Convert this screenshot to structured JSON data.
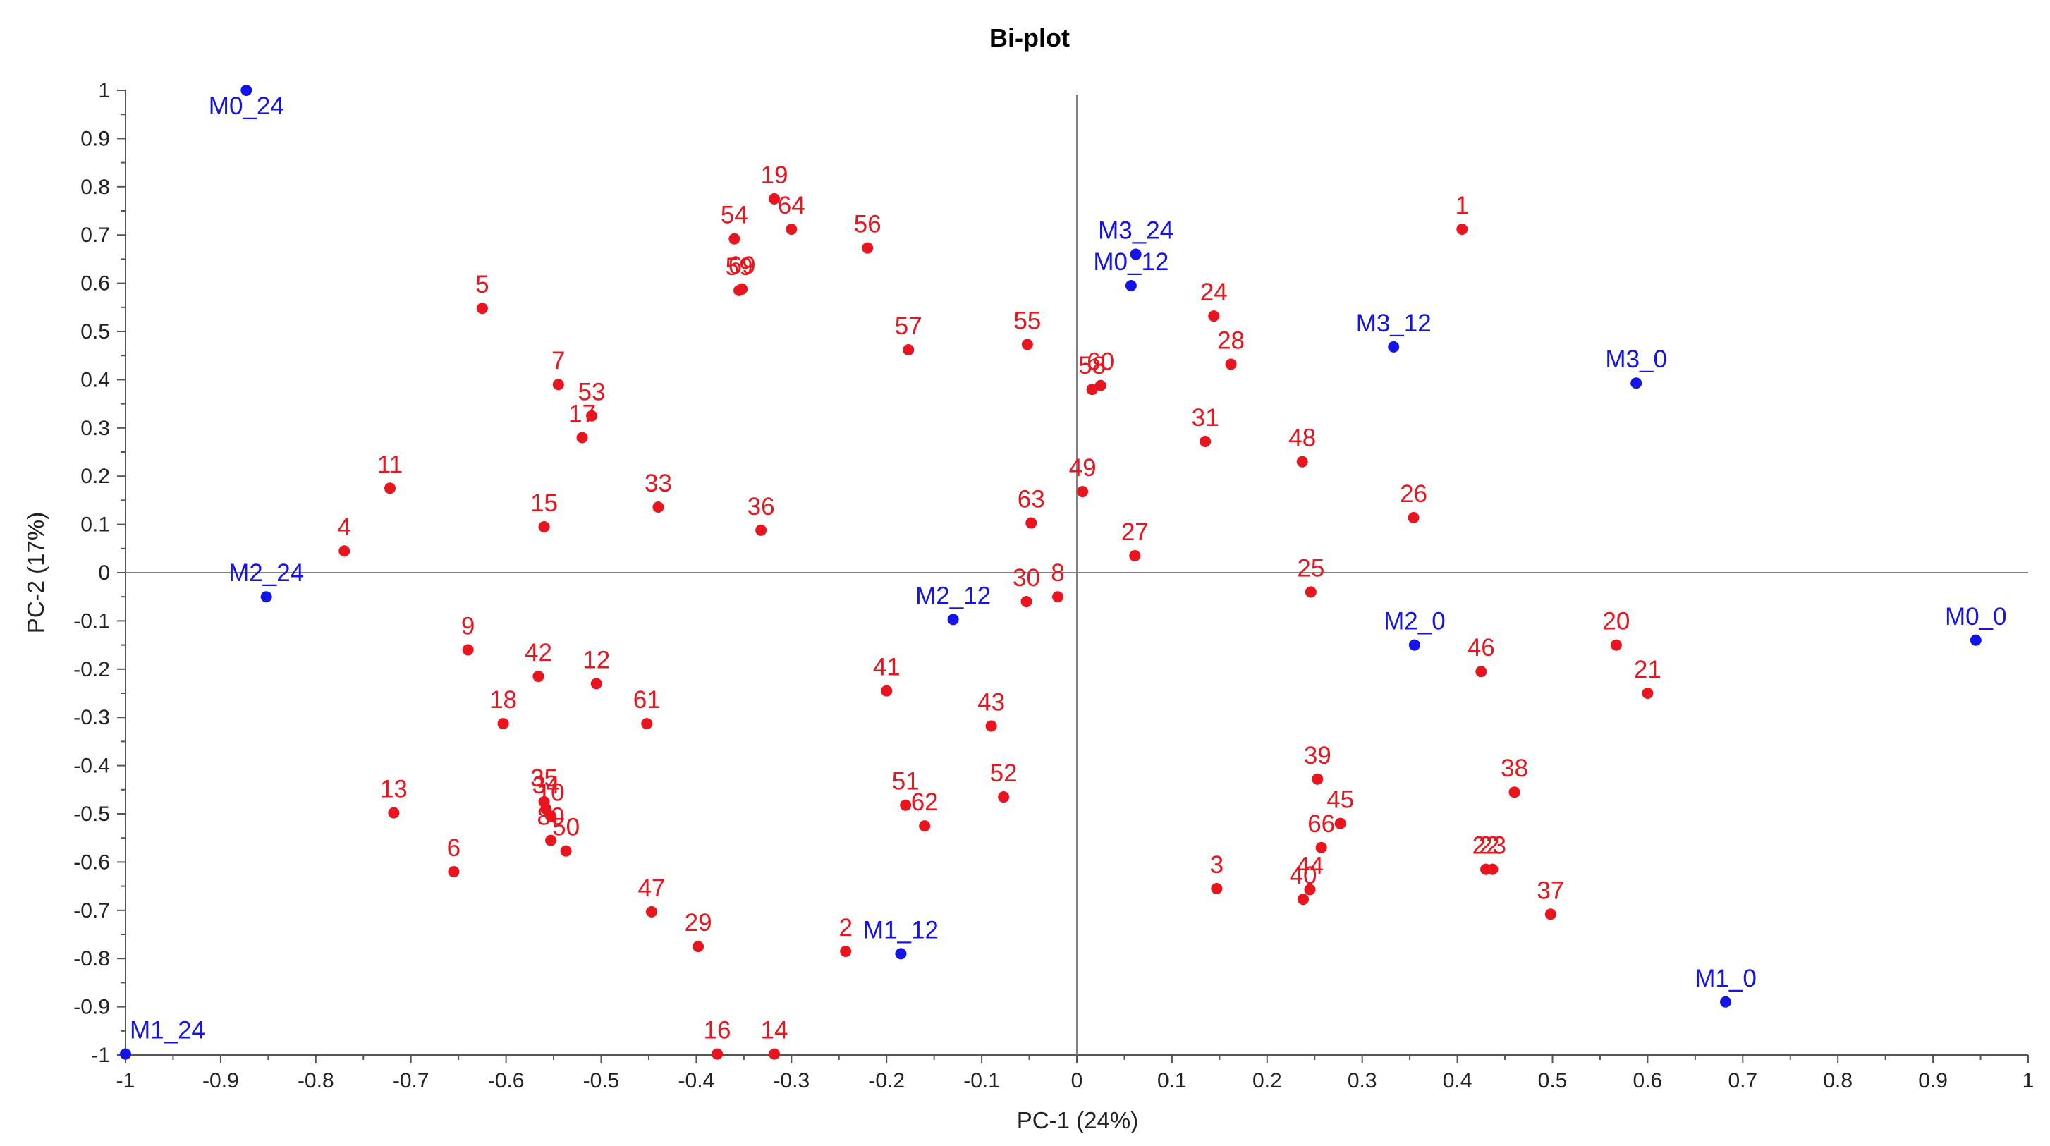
{
  "chart_data": {
    "type": "scatter",
    "title": "Bi-plot",
    "xlabel": "PC-1 (24%)",
    "ylabel": "PC-2 (17%)",
    "xlim": [
      -1,
      1
    ],
    "ylim": [
      -1,
      1
    ],
    "xticks": [
      "-1",
      "-0.9",
      "-0.8",
      "-0.7",
      "-0.6",
      "-0.5",
      "-0.4",
      "-0.3",
      "-0.2",
      "-0.1",
      "0",
      "0.1",
      "0.2",
      "0.3",
      "0.4",
      "0.5",
      "0.6",
      "0.7",
      "0.8",
      "0.9",
      "1"
    ],
    "yticks": [
      "1",
      "0.9",
      "0.8",
      "0.7",
      "0.6",
      "0.5",
      "0.4",
      "0.3",
      "0.2",
      "0.1",
      "0",
      "-0.1",
      "-0.2",
      "-0.3",
      "-0.4",
      "-0.5",
      "-0.6",
      "-0.7",
      "-0.8",
      "-0.9",
      "-1"
    ],
    "grid": false,
    "colors": {
      "variables": "#e8141e",
      "observations": "#1414e6",
      "axis": "#808080"
    },
    "series": [
      {
        "role": "variables",
        "points": [
          {
            "label": "1",
            "x": 0.405,
            "y": 0.712
          },
          {
            "label": "2",
            "x": -0.243,
            "y": -0.785
          },
          {
            "label": "3",
            "x": 0.147,
            "y": -0.655
          },
          {
            "label": "4",
            "x": -0.77,
            "y": 0.045
          },
          {
            "label": "5",
            "x": -0.625,
            "y": 0.548
          },
          {
            "label": "6",
            "x": -0.655,
            "y": -0.62
          },
          {
            "label": "7",
            "x": -0.545,
            "y": 0.39
          },
          {
            "label": "8",
            "x": -0.02,
            "y": -0.05
          },
          {
            "label": "9",
            "x": -0.64,
            "y": -0.16
          },
          {
            "label": "10",
            "x": -0.553,
            "y": -0.505
          },
          {
            "label": "11",
            "x": -0.722,
            "y": 0.175
          },
          {
            "label": "12",
            "x": -0.505,
            "y": -0.23
          },
          {
            "label": "13",
            "x": -0.718,
            "y": -0.498
          },
          {
            "label": "14",
            "x": -0.318,
            "y": -0.998
          },
          {
            "label": "15",
            "x": -0.56,
            "y": 0.095
          },
          {
            "label": "16",
            "x": -0.378,
            "y": -0.998
          },
          {
            "label": "17",
            "x": -0.52,
            "y": 0.28
          },
          {
            "label": "18",
            "x": -0.603,
            "y": -0.313
          },
          {
            "label": "19",
            "x": -0.318,
            "y": 0.775
          },
          {
            "label": "20",
            "x": 0.567,
            "y": -0.15
          },
          {
            "label": "21",
            "x": 0.6,
            "y": -0.25
          },
          {
            "label": "22",
            "x": 0.43,
            "y": -0.615
          },
          {
            "label": "23",
            "x": 0.437,
            "y": -0.615
          },
          {
            "label": "24",
            "x": 0.144,
            "y": 0.532
          },
          {
            "label": "25",
            "x": 0.246,
            "y": -0.04
          },
          {
            "label": "26",
            "x": 0.354,
            "y": 0.114
          },
          {
            "label": "27",
            "x": 0.061,
            "y": 0.035
          },
          {
            "label": "28",
            "x": 0.162,
            "y": 0.432
          },
          {
            "label": "29",
            "x": -0.398,
            "y": -0.775
          },
          {
            "label": "30",
            "x": -0.053,
            "y": -0.06
          },
          {
            "label": "31",
            "x": 0.135,
            "y": 0.272
          },
          {
            "label": "33",
            "x": -0.44,
            "y": 0.136
          },
          {
            "label": "34",
            "x": -0.558,
            "y": -0.49
          },
          {
            "label": "35",
            "x": -0.56,
            "y": -0.475
          },
          {
            "label": "36",
            "x": -0.332,
            "y": 0.088
          },
          {
            "label": "37",
            "x": 0.498,
            "y": -0.708
          },
          {
            "label": "38",
            "x": 0.46,
            "y": -0.455
          },
          {
            "label": "39",
            "x": 0.253,
            "y": -0.428
          },
          {
            "label": "40",
            "x": 0.238,
            "y": -0.677
          },
          {
            "label": "41",
            "x": -0.2,
            "y": -0.245
          },
          {
            "label": "42",
            "x": -0.566,
            "y": -0.215
          },
          {
            "label": "43",
            "x": -0.09,
            "y": -0.318
          },
          {
            "label": "44",
            "x": 0.245,
            "y": -0.657
          },
          {
            "label": "45",
            "x": 0.277,
            "y": -0.52
          },
          {
            "label": "46",
            "x": 0.425,
            "y": -0.205
          },
          {
            "label": "47",
            "x": -0.447,
            "y": -0.703
          },
          {
            "label": "48",
            "x": 0.237,
            "y": 0.23
          },
          {
            "label": "49",
            "x": 0.006,
            "y": 0.168
          },
          {
            "label": "50",
            "x": -0.537,
            "y": -0.577
          },
          {
            "label": "51",
            "x": -0.18,
            "y": -0.482
          },
          {
            "label": "52",
            "x": -0.077,
            "y": -0.465
          },
          {
            "label": "53",
            "x": -0.51,
            "y": 0.325
          },
          {
            "label": "54",
            "x": -0.36,
            "y": 0.692
          },
          {
            "label": "55",
            "x": -0.052,
            "y": 0.473
          },
          {
            "label": "56",
            "x": -0.22,
            "y": 0.673
          },
          {
            "label": "57",
            "x": -0.177,
            "y": 0.462
          },
          {
            "label": "58",
            "x": 0.016,
            "y": 0.38
          },
          {
            "label": "59",
            "x": -0.355,
            "y": 0.585
          },
          {
            "label": "60",
            "x": 0.025,
            "y": 0.388
          },
          {
            "label": "61",
            "x": -0.452,
            "y": -0.313
          },
          {
            "label": "62",
            "x": -0.16,
            "y": -0.525
          },
          {
            "label": "63",
            "x": -0.048,
            "y": 0.103
          },
          {
            "label": "64",
            "x": -0.3,
            "y": 0.712
          },
          {
            "label": "66",
            "x": 0.257,
            "y": -0.57
          },
          {
            "label": "69",
            "x": -0.352,
            "y": 0.588
          },
          {
            "label": "80",
            "x": -0.553,
            "y": -0.555
          }
        ]
      },
      {
        "role": "observations",
        "points": [
          {
            "label": "M0_24",
            "x": -0.873,
            "y": 1.0
          },
          {
            "label": "M0_12",
            "x": 0.057,
            "y": 0.595
          },
          {
            "label": "M3_24",
            "x": 0.062,
            "y": 0.66
          },
          {
            "label": "M3_12",
            "x": 0.333,
            "y": 0.468
          },
          {
            "label": "M3_0",
            "x": 0.588,
            "y": 0.393
          },
          {
            "label": "M2_24",
            "x": -0.852,
            "y": -0.05
          },
          {
            "label": "M2_12",
            "x": -0.13,
            "y": -0.097
          },
          {
            "label": "M2_0",
            "x": 0.355,
            "y": -0.15
          },
          {
            "label": "M0_0",
            "x": 0.945,
            "y": -0.14
          },
          {
            "label": "M1_12",
            "x": -0.185,
            "y": -0.79
          },
          {
            "label": "M1_0",
            "x": 0.682,
            "y": -0.89
          },
          {
            "label": "M1_24",
            "x": -1.0,
            "y": -0.998
          }
        ]
      }
    ]
  }
}
